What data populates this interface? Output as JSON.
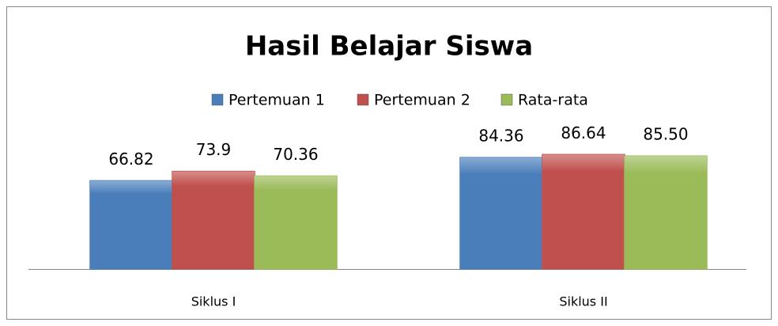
{
  "chart_data": {
    "type": "bar",
    "title": "Hasil Belajar Siswa",
    "categories": [
      "Siklus I",
      "Siklus II"
    ],
    "series": [
      {
        "name": "Pertemuan 1",
        "color": "#4a7ebb",
        "values": [
          66.82,
          84.36
        ]
      },
      {
        "name": "Pertemuan 2",
        "color": "#c0504d",
        "values": [
          73.9,
          86.64
        ]
      },
      {
        "name": "Rata-rata",
        "color": "#9bbb59",
        "values": [
          70.36,
          85.5
        ],
        "value_labels": [
          "70.36",
          "85.50"
        ]
      }
    ],
    "ylim": [
      0,
      100
    ],
    "legend": "top"
  }
}
